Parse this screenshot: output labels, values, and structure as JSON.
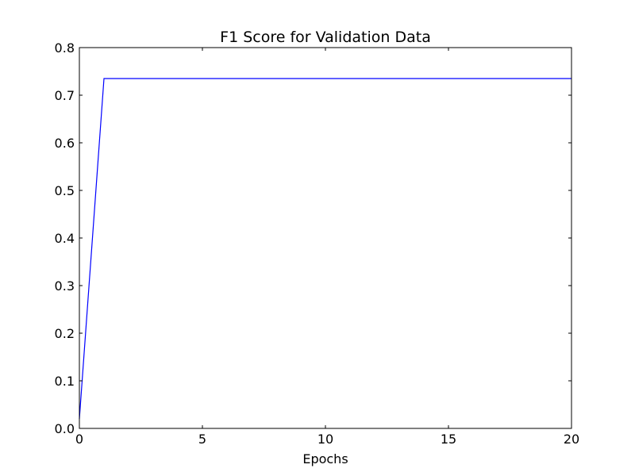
{
  "chart_data": {
    "type": "line",
    "title": "F1 Score for Validation Data",
    "xlabel": "Epochs",
    "ylabel": "",
    "xlim": [
      0,
      20
    ],
    "ylim": [
      0.0,
      0.8
    ],
    "xticks": [
      0,
      5,
      10,
      15,
      20
    ],
    "xtick_labels": [
      "0",
      "5",
      "10",
      "15",
      "20"
    ],
    "yticks": [
      0.0,
      0.1,
      0.2,
      0.3,
      0.4,
      0.5,
      0.6,
      0.7,
      0.8
    ],
    "ytick_labels": [
      "0.0",
      "0.1",
      "0.2",
      "0.3",
      "0.4",
      "0.5",
      "0.6",
      "0.7",
      "0.8"
    ],
    "grid": false,
    "legend": "none",
    "series": [
      {
        "color": "#0000ff",
        "x": [
          0,
          1,
          2,
          3,
          4,
          5,
          6,
          7,
          8,
          9,
          10,
          11,
          12,
          13,
          14,
          15,
          16,
          17,
          18,
          19,
          20
        ],
        "y": [
          0.02,
          0.735,
          0.735,
          0.735,
          0.735,
          0.735,
          0.735,
          0.735,
          0.735,
          0.735,
          0.735,
          0.735,
          0.735,
          0.735,
          0.735,
          0.735,
          0.735,
          0.735,
          0.735,
          0.735,
          0.735
        ]
      }
    ]
  }
}
